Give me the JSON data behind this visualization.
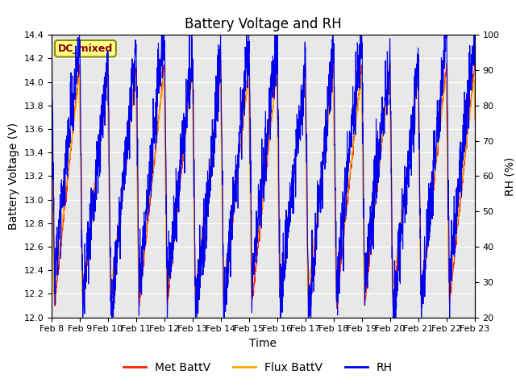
{
  "title": "Battery Voltage and RH",
  "ylabel_left": "Battery Voltage (V)",
  "ylabel_right": "RH (%)",
  "xlabel": "Time",
  "ylim_left": [
    12.0,
    14.4
  ],
  "ylim_right": [
    20,
    100
  ],
  "yticks_left": [
    12.0,
    12.2,
    12.4,
    12.6,
    12.8,
    13.0,
    13.2,
    13.4,
    13.6,
    13.8,
    14.0,
    14.2,
    14.4
  ],
  "yticks_right": [
    20,
    30,
    40,
    50,
    60,
    70,
    80,
    90,
    100
  ],
  "xtick_labels": [
    "Feb 8",
    "Feb 9",
    "Feb 10",
    "Feb 11",
    "Feb 12",
    "Feb 13",
    "Feb 14",
    "Feb 15",
    "Feb 16",
    "Feb 17",
    "Feb 18",
    "Feb 19",
    "Feb 20",
    "Feb 21",
    "Feb 22",
    "Feb 23"
  ],
  "annotation_text": "DC_mixed",
  "annotation_color": "#8B0000",
  "annotation_bg": "#FFFF88",
  "annotation_border": "#8B8B00",
  "met_battv_color": "#FF2200",
  "flux_battv_color": "#FFA500",
  "rh_color": "#0000EE",
  "legend_labels": [
    "Met BattV",
    "Flux BattV",
    "RH"
  ],
  "background_color": "#E8E8E8",
  "fig_color": "#FFFFFF",
  "title_fontsize": 12,
  "axis_label_fontsize": 10,
  "tick_fontsize": 8,
  "legend_fontsize": 10
}
